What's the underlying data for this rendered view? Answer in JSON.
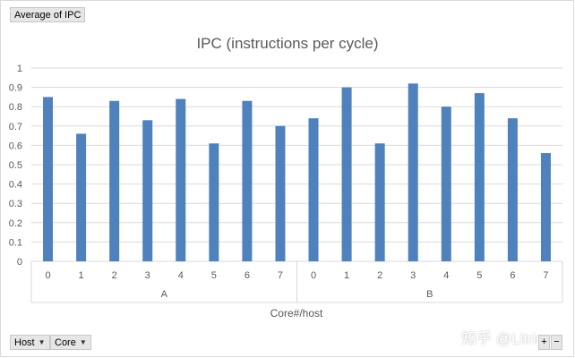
{
  "value_field_label": "Average of IPC",
  "filters": {
    "host_label": "Host",
    "core_label": "Core",
    "dropdown_glyph": "▼"
  },
  "zoom": {
    "plus": "+",
    "minus": "−"
  },
  "watermark": "知乎 @Litrin",
  "colors": {
    "bar": "#4f81bd",
    "grid": "#d9d9d9",
    "axis_text": "#595959",
    "title": "#595959"
  },
  "chart_data": {
    "type": "bar",
    "title": "IPC (instructions per cycle)",
    "xlabel": "Core#/host",
    "ylabel": "",
    "ylim": [
      0,
      1
    ],
    "ytick_step": 0.1,
    "yticks": [
      "0",
      "0.1",
      "0.2",
      "0.3",
      "0.4",
      "0.5",
      "0.6",
      "0.7",
      "0.8",
      "0.9",
      "1"
    ],
    "grid": true,
    "legend": "none",
    "groups": [
      {
        "name": "A",
        "categories": [
          "0",
          "1",
          "2",
          "3",
          "4",
          "5",
          "6",
          "7"
        ],
        "values": [
          0.85,
          0.66,
          0.83,
          0.73,
          0.84,
          0.61,
          0.83,
          0.7
        ]
      },
      {
        "name": "B",
        "categories": [
          "0",
          "1",
          "2",
          "3",
          "4",
          "5",
          "6",
          "7"
        ],
        "values": [
          0.74,
          0.9,
          0.61,
          0.92,
          0.8,
          0.87,
          0.74,
          0.56
        ]
      }
    ]
  }
}
